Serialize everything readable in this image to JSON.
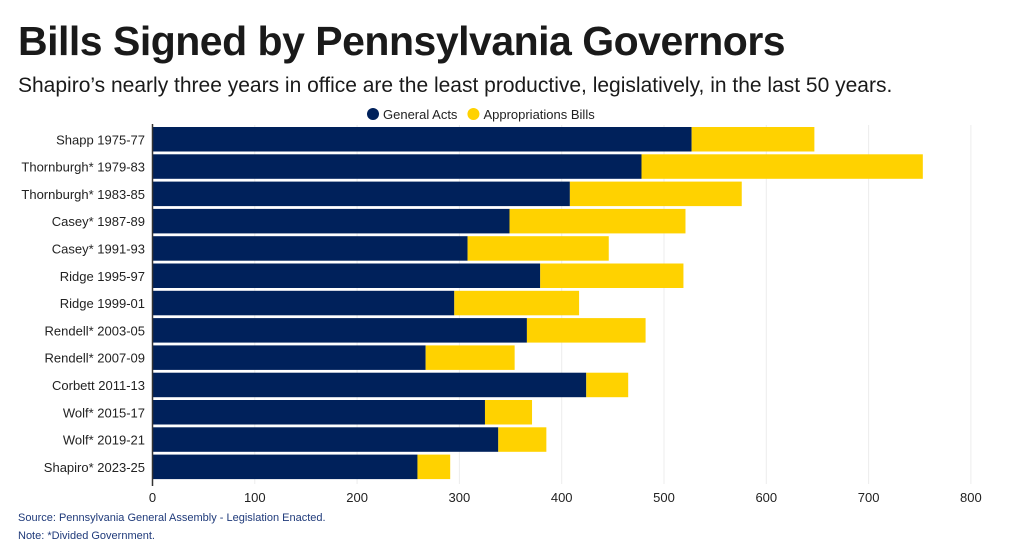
{
  "chart_data": {
    "type": "bar",
    "orientation": "horizontal",
    "stacked": true,
    "title": "Bills Signed by Pennsylvania Governors",
    "subtitle": "Shapiro’s nearly three years in office are the least productive, legislatively, in the last 50 years.",
    "categories": [
      "Shapp 1975-77",
      "Thornburgh* 1979-83",
      "Thornburgh* 1983-85",
      "Casey* 1987-89",
      "Casey* 1991-93",
      "Ridge 1995-97",
      "Ridge 1999-01",
      "Rendell* 2003-05",
      "Rendell* 2007-09",
      "Corbett 2011-13",
      "Wolf* 2015-17",
      "Wolf* 2019-21",
      "Shapiro* 2023-25"
    ],
    "series": [
      {
        "name": "General Acts",
        "color": "#00215b",
        "values": [
          527,
          478,
          408,
          349,
          308,
          379,
          295,
          366,
          267,
          424,
          325,
          338,
          259
        ]
      },
      {
        "name": "Appropriations Bills",
        "color": "#ffd200",
        "values": [
          120,
          275,
          168,
          172,
          138,
          140,
          122,
          116,
          87,
          41,
          46,
          47,
          32
        ]
      }
    ],
    "xlim": [
      0,
      800
    ],
    "xticks": [
      "0",
      "100",
      "200",
      "300",
      "400",
      "500",
      "600",
      "700",
      "800"
    ],
    "grid": true,
    "legend": "top-center",
    "source": "Source: Pennsylvania General Assembly - Legislation Enacted.",
    "note": "Note: *Divided Government."
  }
}
